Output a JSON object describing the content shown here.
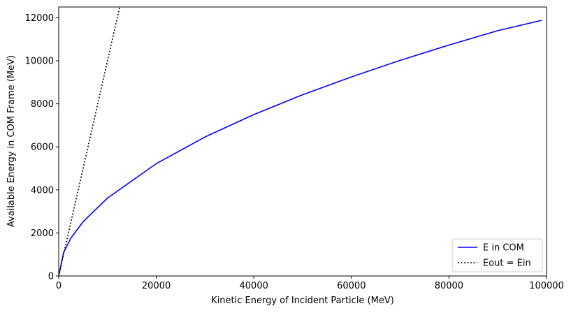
{
  "chart_data": {
    "type": "line",
    "title": "",
    "xlabel": "Kinetic Energy of Incident Particle (MeV)",
    "ylabel": "Available Energy in COM Frame (MeV)",
    "xlim": [
      0,
      100000
    ],
    "ylim": [
      0,
      12500
    ],
    "x_ticks": [
      0,
      20000,
      40000,
      60000,
      80000,
      100000
    ],
    "y_ticks": [
      0,
      2000,
      4000,
      6000,
      8000,
      10000,
      12000
    ],
    "grid": false,
    "legend_position": "lower-right",
    "series": [
      {
        "name": "E in COM",
        "color": "#0000ff",
        "style": "solid",
        "x": [
          0,
          1000,
          2500,
          5000,
          10000,
          20000,
          30000,
          40000,
          50000,
          60000,
          70000,
          80000,
          90000,
          99000
        ],
        "y": [
          0,
          1090,
          1760,
          2520,
          3620,
          5220,
          6460,
          7500,
          8420,
          9250,
          10020,
          10730,
          11400,
          11880
        ]
      },
      {
        "name": "Eout = Ein",
        "color": "#000000",
        "style": "dotted",
        "x": [
          0,
          13000
        ],
        "y": [
          0,
          13000
        ]
      }
    ]
  }
}
